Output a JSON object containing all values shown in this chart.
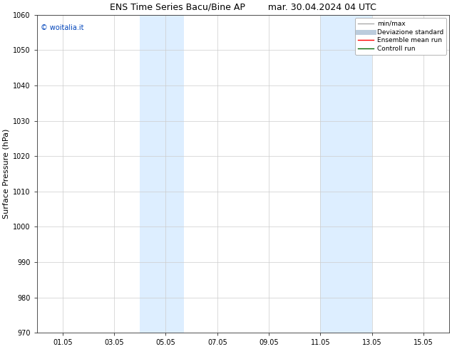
{
  "title": "ENS Time Series Bacu/Bine AP",
  "title_date": "mar. 30.04.2024 04 UTC",
  "ylabel": "Surface Pressure (hPa)",
  "ylim": [
    970,
    1060
  ],
  "yticks": [
    970,
    980,
    990,
    1000,
    1010,
    1020,
    1030,
    1040,
    1050,
    1060
  ],
  "xlim": [
    0,
    16
  ],
  "xtick_labels": [
    "01.05",
    "03.05",
    "05.05",
    "07.05",
    "09.05",
    "11.05",
    "13.05",
    "15.05"
  ],
  "xtick_positions": [
    1,
    3,
    5,
    7,
    9,
    11,
    13,
    15
  ],
  "shaded_regions": [
    {
      "x_start": 4.0,
      "x_end": 5.7,
      "color": "#ddeeff"
    },
    {
      "x_start": 11.0,
      "x_end": 13.0,
      "color": "#ddeeff"
    }
  ],
  "watermark_text": "© woitalia.it",
  "watermark_color": "#0044bb",
  "background_color": "#ffffff",
  "legend_items": [
    {
      "label": "min/max",
      "color": "#aaaaaa",
      "lw": 1.0
    },
    {
      "label": "Deviazione standard",
      "color": "#bbccdd",
      "lw": 5
    },
    {
      "label": "Ensemble mean run",
      "color": "#ff0000",
      "lw": 1.0
    },
    {
      "label": "Controll run",
      "color": "#006600",
      "lw": 1.0
    }
  ],
  "title_fontsize": 9,
  "axis_label_fontsize": 8,
  "tick_fontsize": 7,
  "watermark_fontsize": 7,
  "legend_fontsize": 6.5,
  "grid_color": "#cccccc",
  "grid_lw": 0.5,
  "spine_color": "#333333",
  "spine_lw": 0.6
}
